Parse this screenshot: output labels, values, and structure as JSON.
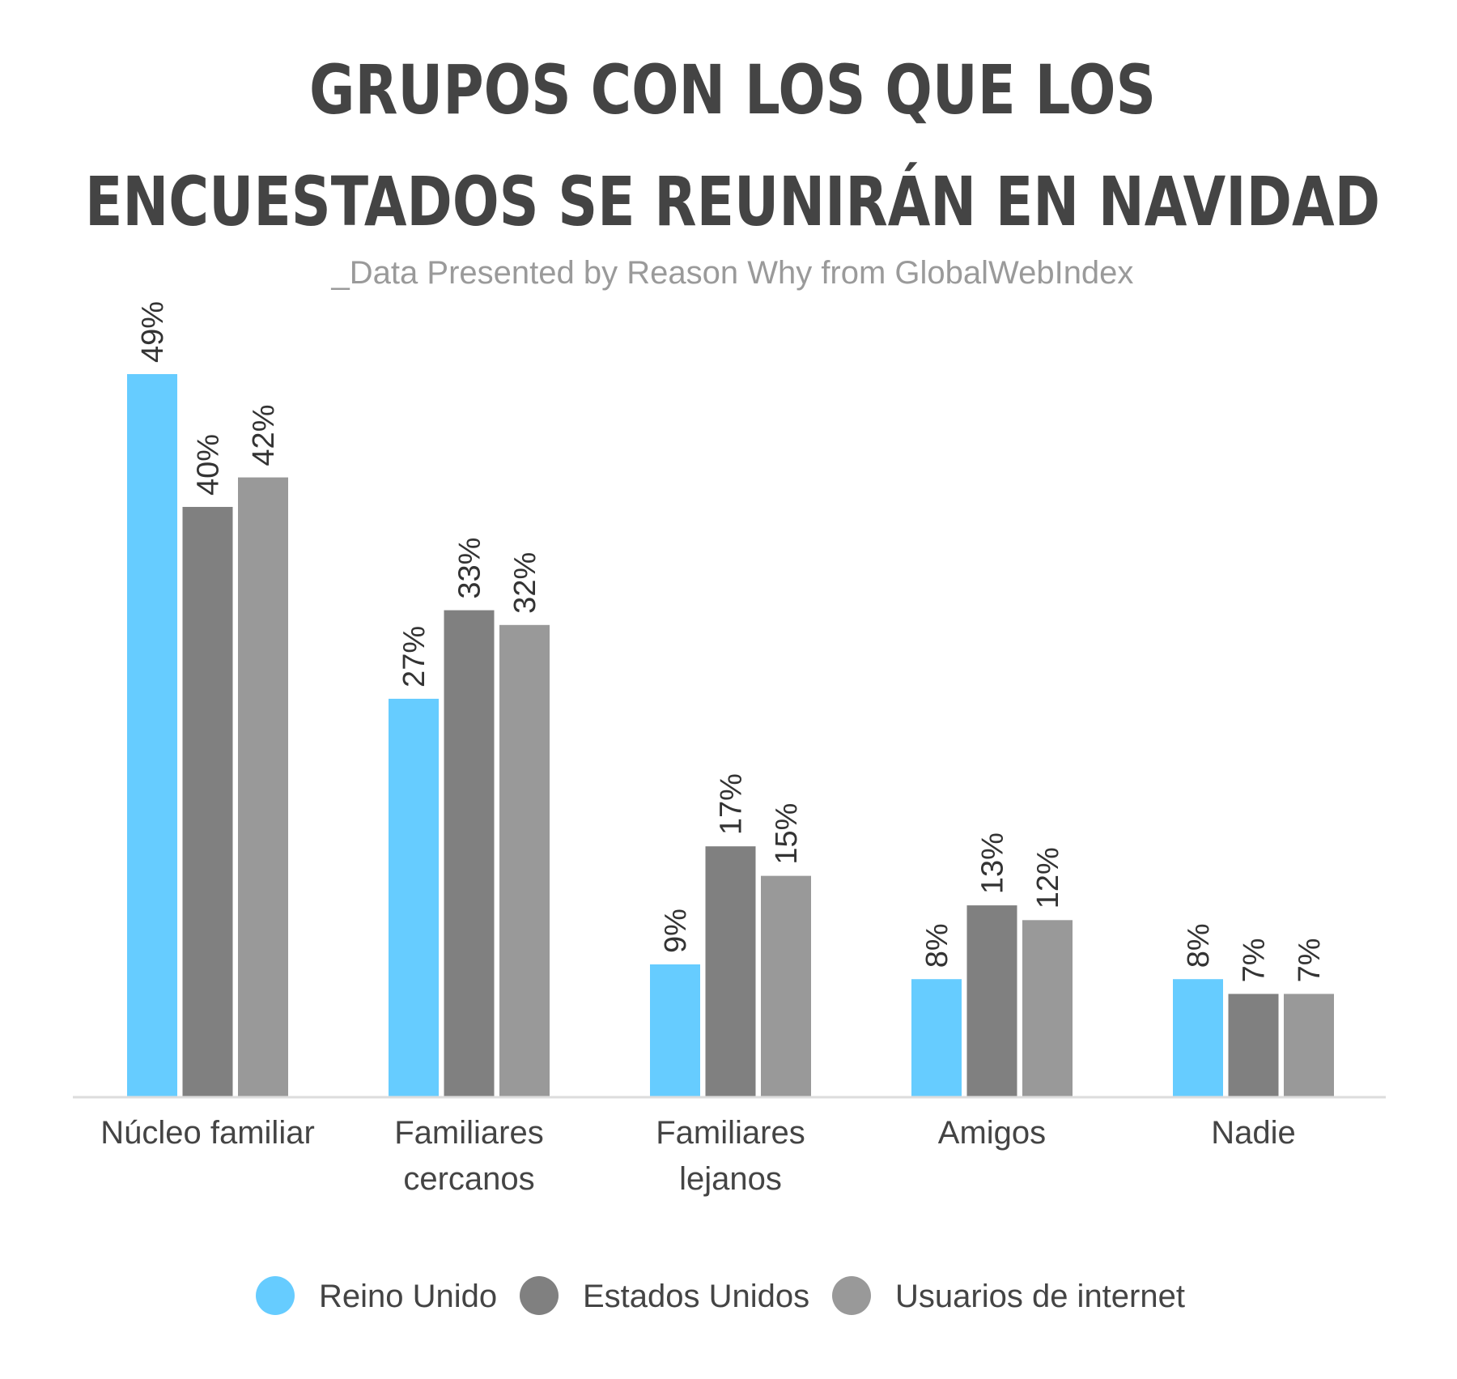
{
  "chart_data": {
    "type": "bar",
    "title_lines": [
      "GRUPOS CON LOS QUE LOS",
      "ENCUESTADOS SE REUNIRÁN EN NAVIDAD"
    ],
    "subtitle": "_Data Presented by Reason Why from GlobalWebIndex",
    "categories": [
      [
        "Núcleo familiar"
      ],
      [
        "Familiares",
        "cercanos"
      ],
      [
        "Familiares",
        "lejanos"
      ],
      [
        "Amigos"
      ],
      [
        "Nadie"
      ]
    ],
    "series": [
      {
        "name": "Reino Unido",
        "color": "#66ccff",
        "values": [
          49,
          27,
          9,
          8,
          8
        ]
      },
      {
        "name": "Estados Unidos",
        "color": "#808080",
        "values": [
          40,
          33,
          17,
          13,
          7
        ]
      },
      {
        "name": "Usuarios de internet",
        "color": "#999999",
        "values": [
          42,
          32,
          15,
          12,
          7
        ]
      }
    ],
    "value_suffix": "%",
    "ylim": [
      0,
      49
    ],
    "grid": false,
    "legend_position": "bottom"
  }
}
